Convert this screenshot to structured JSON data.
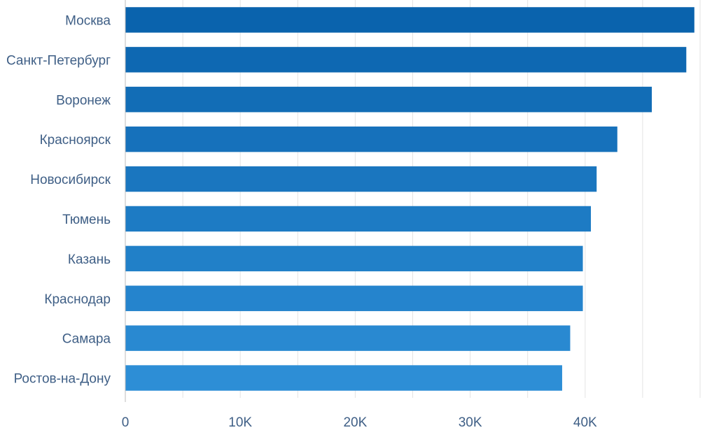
{
  "chart_data": {
    "type": "bar",
    "orientation": "horizontal",
    "title": "",
    "xlabel": "",
    "ylabel": "",
    "categories": [
      "Москва",
      "Санкт-Петербург",
      "Воронеж",
      "Красноярск",
      "Новосибирск",
      "Тюмень",
      "Казань",
      "Краснодар",
      "Самара",
      "Ростов-на-Дону"
    ],
    "values": [
      49500,
      48800,
      45800,
      42800,
      41000,
      40500,
      39800,
      39800,
      38700,
      38000
    ],
    "xlim": [
      0,
      50000
    ],
    "x_ticks": [
      0,
      10000,
      20000,
      30000,
      40000
    ],
    "x_tick_labels": [
      "0",
      "10K",
      "20K",
      "30K",
      "40K"
    ],
    "grid": true,
    "legend": "none",
    "colors": {
      "bar_top": "#0a63ad",
      "bar_bottom": "#2d8ed6",
      "grid": "#e3e3e3",
      "axis": "#bdbdbd",
      "text": "#3f5f86"
    }
  }
}
